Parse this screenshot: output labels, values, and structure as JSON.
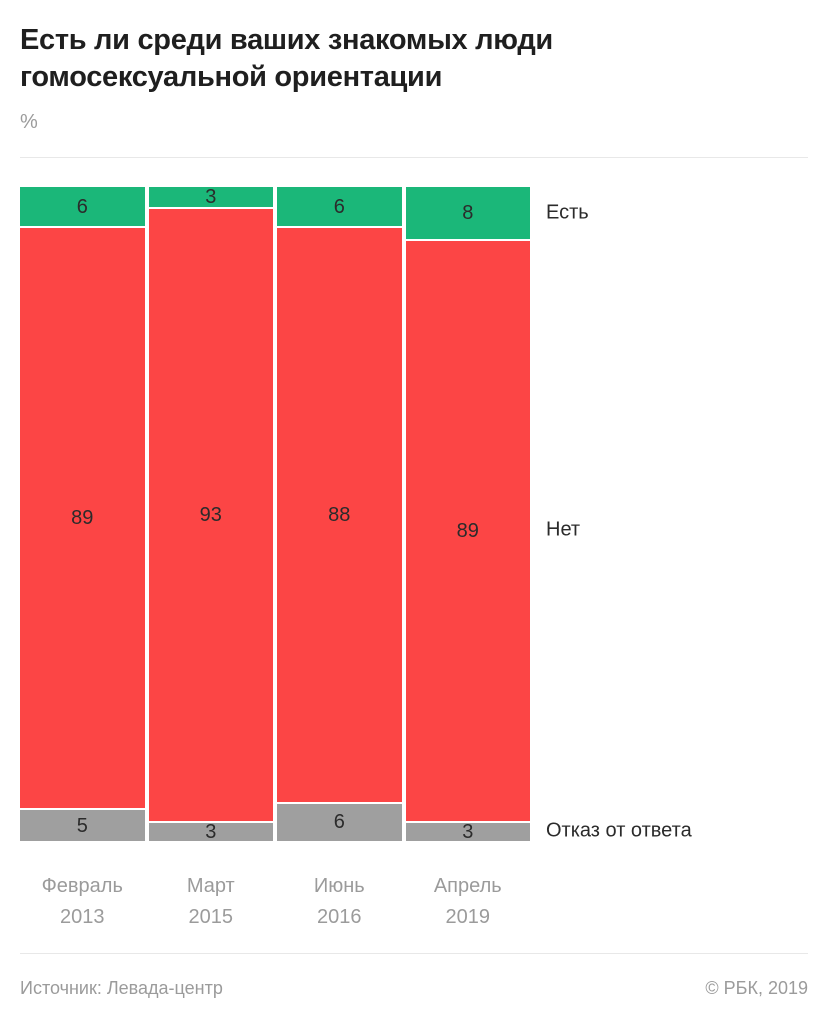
{
  "header": {
    "title": "Есть ли среди ваших знакомых люди гомосексуальной ориентации",
    "unit": "%"
  },
  "chart_data": {
    "type": "bar",
    "stacked": true,
    "orientation": "vertical",
    "title": "Есть ли среди ваших знакомых люди гомосексуальной ориентации",
    "unit": "%",
    "categories": [
      {
        "label": "Февраль",
        "sublabel": "2013"
      },
      {
        "label": "Март",
        "sublabel": "2015"
      },
      {
        "label": "Июнь",
        "sublabel": "2016"
      },
      {
        "label": "Апрель",
        "sublabel": "2019"
      }
    ],
    "series": [
      {
        "name": "Есть",
        "key": "yes",
        "color": "#1bb779",
        "values": [
          6,
          3,
          6,
          8
        ]
      },
      {
        "name": "Нет",
        "key": "no",
        "color": "#fc4545",
        "values": [
          89,
          93,
          88,
          89
        ]
      },
      {
        "name": "Отказ от ответа",
        "key": "refused",
        "color": "#9f9f9f",
        "values": [
          5,
          3,
          6,
          3
        ]
      }
    ],
    "legend_position": "right",
    "value_labels": true,
    "ylim": [
      0,
      100
    ],
    "grid": false
  },
  "footer": {
    "source": "Источник: Левада-центр",
    "copyright": "© РБК, 2019"
  },
  "colors": {
    "title": "#1f1f1f",
    "muted": "#9b9b9b",
    "value_label": "#2b2b2b",
    "divider": "#e8e8e8",
    "background": "#ffffff"
  }
}
